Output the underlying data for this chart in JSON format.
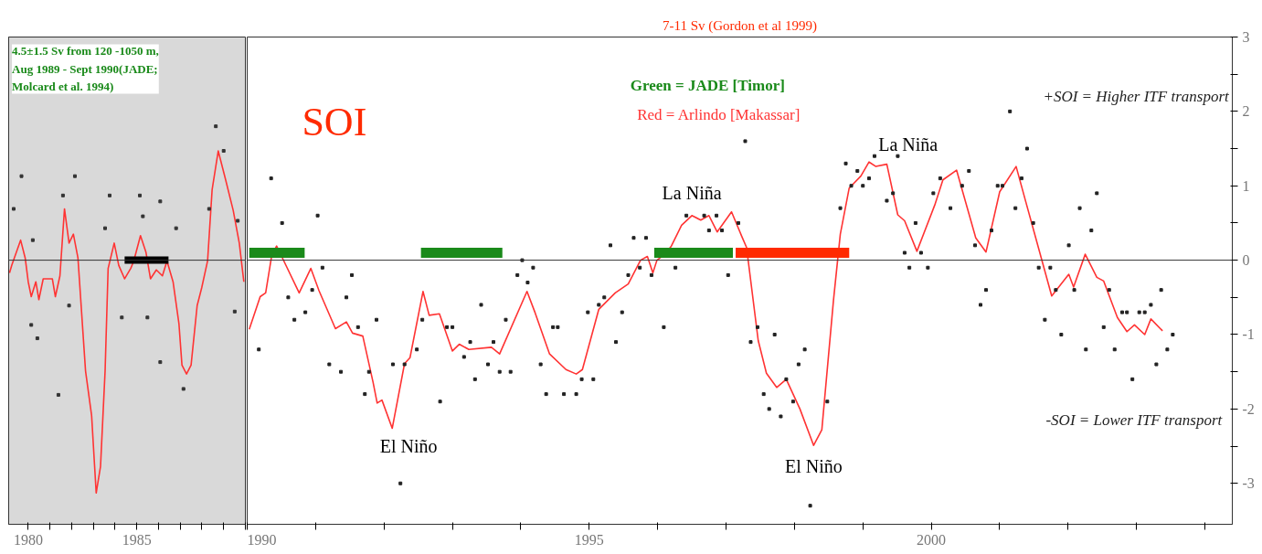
{
  "chart_data": [
    {
      "type": "line",
      "ylim": [
        -3.55,
        3
      ],
      "series": [
        {
          "type": "line",
          "color": "#ff3333",
          "x": [
            1979.14,
            1979.24,
            1979.65,
            1979.86,
            1980.0,
            1980.14,
            1980.35,
            1980.49,
            1980.69,
            1981.11,
            1981.25,
            1981.46,
            1981.67,
            1981.88,
            1982.08,
            1982.29,
            1982.64,
            1982.92,
            1983.13,
            1983.33,
            1983.54,
            1983.68,
            1983.96,
            1984.17,
            1984.44,
            1984.72,
            1984.86,
            1985.17,
            1985.42,
            1985.63,
            1985.9,
            1986.18,
            1986.39,
            1986.67,
            1986.94,
            1987.08,
            1987.29,
            1987.5,
            1987.78,
            1987.99,
            1988.26,
            1988.47,
            1988.75,
            1989.1,
            1989.44,
            1989.72,
            1989.93
          ],
          "values": [
            -0.17,
            -0.07,
            0.27,
            0.03,
            -0.29,
            -0.49,
            -0.29,
            -0.53,
            -0.25,
            -0.25,
            -0.49,
            -0.21,
            0.69,
            0.23,
            0.35,
            0.03,
            -1.49,
            -2.09,
            -3.13,
            -2.77,
            -1.49,
            -0.11,
            0.23,
            -0.07,
            -0.25,
            -0.11,
            -0.01,
            0.33,
            0.11,
            -0.25,
            -0.13,
            -0.21,
            -0.01,
            -0.29,
            -0.85,
            -1.41,
            -1.53,
            -1.41,
            -0.61,
            -0.37,
            -0.01,
            0.95,
            1.47,
            1.07,
            0.67,
            0.23,
            -0.29
          ]
        },
        {
          "type": "scatter",
          "color": "#333333",
          "x": [
            1979.33,
            1979.69,
            1980.14,
            1980.21,
            1980.42,
            1981.39,
            1981.6,
            1981.88,
            1982.15,
            1983.54,
            1983.75,
            1984.31,
            1985.14,
            1985.28,
            1985.49,
            1986.08,
            1986.08,
            1986.81,
            1987.15,
            1988.33,
            1988.64,
            1989.0,
            1989.51,
            1989.65
          ],
          "values": [
            0.69,
            1.13,
            -0.87,
            0.27,
            -1.05,
            -1.81,
            0.87,
            -0.61,
            1.13,
            0.43,
            0.87,
            -0.77,
            0.87,
            0.59,
            -0.77,
            0.79,
            -1.37,
            0.43,
            -1.73,
            0.69,
            1.8,
            1.47,
            -0.69,
            0.53
          ]
        },
        {
          "type": "line",
          "color": "#000000",
          "x": [
            1984.44,
            1986.46
          ],
          "values": [
            0,
            0
          ]
        }
      ],
      "xlim": [
        1979.1,
        1990.0
      ],
      "xticks": [
        1980,
        {
          "value": 1981,
          "label": null
        },
        {
          "value": 1982,
          "label": null
        },
        {
          "value": 1983,
          "label": null
        },
        {
          "value": 1984,
          "label": null
        },
        1985,
        {
          "value": 1986,
          "label": null
        },
        {
          "value": 1987,
          "label": null
        },
        {
          "value": 1988,
          "label": null
        },
        {
          "value": 1989,
          "label": null
        },
        {
          "value": 1990,
          "label": null
        }
      ],
      "tick_labels": "x",
      "ref_lines": [
        {
          "axis": "y",
          "value": 0,
          "color": "#333333"
        }
      ],
      "annotations": [
        "4.5±1.5 Sv from 120 -1050 m, Aug 1989 - Sept 1990(JADE; Molcard et al. 1994)"
      ]
    },
    {
      "type": "line",
      "series": [
        {
          "type": "line",
          "color": "#ff3333",
          "x": [
            1990.03,
            1990.19,
            1990.27,
            1990.36,
            1990.43,
            1990.52,
            1990.76,
            1990.93,
            1991.05,
            1991.29,
            1991.45,
            1991.54,
            1991.69,
            1991.84,
            1991.9,
            1991.97,
            1992.12,
            1992.3,
            1992.38,
            1992.57,
            1992.66,
            1992.81,
            1993.0,
            1993.1,
            1993.24,
            1993.57,
            1993.69,
            1994.09,
            1994.21,
            1994.42,
            1994.66,
            1994.81,
            1994.9,
            1995.14,
            1995.38,
            1995.57,
            1995.75,
            1995.85,
            1995.93,
            1995.99,
            1996.09,
            1996.2,
            1996.35,
            1996.5,
            1996.63,
            1996.75,
            1996.87,
            1997.08,
            1997.23,
            1997.3,
            1997.47,
            1997.59,
            1997.74,
            1997.88,
            1998.08,
            1998.28,
            1998.4,
            1998.57,
            1998.67,
            1998.8,
            1998.97,
            1999.09,
            1999.19,
            1999.35,
            1999.51,
            1999.61,
            1999.79,
            2000.05,
            2000.17,
            2000.37,
            2000.65,
            2000.8,
            2001.0,
            2001.24,
            2001.38,
            2001.76,
            2002.01,
            2002.08,
            2002.25,
            2002.42,
            2002.52,
            2002.72,
            2002.86,
            2002.97,
            2003.12,
            2003.21,
            2003.38
          ],
          "values": [
            -0.93,
            -0.49,
            -0.44,
            0.07,
            0.19,
            0.02,
            -0.44,
            -0.11,
            -0.41,
            -0.92,
            -0.83,
            -0.98,
            -1.02,
            -1.64,
            -1.92,
            -1.88,
            -2.26,
            -1.39,
            -1.31,
            -0.42,
            -0.74,
            -0.72,
            -1.22,
            -1.13,
            -1.2,
            -1.17,
            -1.26,
            -0.42,
            -0.71,
            -1.26,
            -1.47,
            -1.53,
            -1.47,
            -0.66,
            -0.44,
            -0.32,
            0.0,
            0.05,
            -0.17,
            0.0,
            0.07,
            0.19,
            0.47,
            0.6,
            0.54,
            0.6,
            0.38,
            0.65,
            0.32,
            0.17,
            -1.08,
            -1.52,
            -1.71,
            -1.6,
            -2.0,
            -2.49,
            -2.28,
            -0.54,
            0.35,
            0.97,
            1.13,
            1.32,
            1.26,
            1.29,
            0.61,
            0.53,
            0.12,
            0.74,
            1.08,
            1.21,
            0.3,
            0.11,
            0.92,
            1.26,
            0.79,
            -0.48,
            -0.19,
            -0.36,
            0.08,
            -0.23,
            -0.28,
            -0.77,
            -0.96,
            -0.87,
            -1.0,
            -0.79,
            -0.95
          ]
        },
        {
          "type": "scatter",
          "color": "#222222",
          "x": [
            1990.17,
            1990.35,
            1990.51,
            1990.6,
            1990.69,
            1990.85,
            1990.95,
            1991.03,
            1991.1,
            1991.2,
            1991.37,
            1991.45,
            1991.53,
            1991.62,
            1991.72,
            1991.78,
            1991.89,
            1992.13,
            1992.24,
            1992.3,
            1992.48,
            1992.56,
            1992.82,
            1992.92,
            1993.0,
            1993.17,
            1993.26,
            1993.33,
            1993.42,
            1993.52,
            1993.6,
            1993.69,
            1993.78,
            1993.85,
            1993.95,
            1994.02,
            1994.1,
            1994.18,
            1994.29,
            1994.37,
            1994.47,
            1994.54,
            1994.63,
            1994.81,
            1994.89,
            1994.98,
            1995.06,
            1995.14,
            1995.22,
            1995.31,
            1995.39,
            1995.48,
            1995.57,
            1995.65,
            1995.74,
            1995.83,
            1995.91,
            1996.09,
            1996.26,
            1996.42,
            1996.68,
            1996.75,
            1996.86,
            1996.94,
            1997.03,
            1997.18,
            1997.28,
            1997.36,
            1997.46,
            1997.55,
            1997.63,
            1997.71,
            1997.8,
            1997.88,
            1997.98,
            1998.06,
            1998.15,
            1998.23,
            1998.48,
            1998.67,
            1998.75,
            1998.83,
            1998.92,
            1999.0,
            1999.09,
            1999.17,
            1999.35,
            1999.44,
            1999.51,
            1999.61,
            1999.68,
            1999.77,
            1999.85,
            1999.95,
            2000.03,
            2000.13,
            2000.28,
            2000.45,
            2000.55,
            2000.64,
            2000.72,
            2000.8,
            2000.88,
            2000.97,
            2001.04,
            2001.15,
            2001.23,
            2001.32,
            2001.4,
            2001.49,
            2001.57,
            2001.66,
            2001.74,
            2001.82,
            2001.9,
            2002.01,
            2002.09,
            2002.17,
            2002.26,
            2002.34,
            2002.42,
            2002.52,
            2002.6,
            2002.68,
            2002.79,
            2002.86,
            2002.94,
            2003.04,
            2003.12,
            2003.21,
            2003.29,
            2003.36,
            2003.45,
            2003.53
          ],
          "values": [
            -1.2,
            1.1,
            0.5,
            -0.5,
            -0.8,
            -0.7,
            -0.4,
            0.6,
            -0.1,
            -1.4,
            -1.5,
            -0.5,
            -0.2,
            -0.9,
            -1.8,
            -1.5,
            -0.8,
            -1.4,
            -3.0,
            -1.4,
            -1.2,
            -0.8,
            -1.9,
            -0.9,
            -0.9,
            -1.3,
            -1.1,
            -1.6,
            -0.6,
            -1.4,
            -1.1,
            -1.5,
            -0.8,
            -1.5,
            -0.2,
            0.0,
            -0.3,
            -0.1,
            -1.4,
            -1.8,
            -0.9,
            -0.9,
            -1.8,
            -1.8,
            -1.6,
            -0.7,
            -1.6,
            -0.6,
            -0.5,
            0.2,
            -1.1,
            -0.7,
            -0.2,
            0.3,
            -0.1,
            0.3,
            -0.2,
            -0.9,
            -0.1,
            0.6,
            0.6,
            0.4,
            0.6,
            0.4,
            -0.2,
            0.5,
            1.6,
            -1.1,
            -0.9,
            -1.8,
            -2.0,
            -1.0,
            -2.1,
            -1.6,
            -1.9,
            -1.4,
            -1.2,
            -3.3,
            -1.9,
            0.7,
            1.3,
            1.0,
            1.2,
            1.0,
            1.1,
            1.4,
            0.8,
            0.9,
            1.4,
            0.1,
            -0.1,
            0.5,
            0.1,
            -0.1,
            0.9,
            1.1,
            0.7,
            1.0,
            1.2,
            0.2,
            -0.6,
            -0.4,
            0.4,
            1.0,
            1.0,
            2.0,
            0.7,
            1.1,
            1.5,
            0.5,
            -0.1,
            -0.8,
            -0.1,
            -0.4,
            -1.0,
            0.2,
            -0.4,
            0.7,
            -1.2,
            0.4,
            0.9,
            -0.9,
            -0.4,
            -1.2,
            -0.7,
            -0.7,
            -1.6,
            -0.7,
            -0.7,
            -0.6,
            -1.4,
            -0.4,
            -1.2,
            -1.0
          ]
        },
        {
          "type": "line",
          "color": "#1a8a1a",
          "x": [
            1990.03,
            1990.84
          ],
          "values": [
            0.1,
            0.1
          ]
        },
        {
          "type": "line",
          "color": "#1a8a1a",
          "x": [
            1992.54,
            1993.73
          ],
          "values": [
            0.1,
            0.1
          ]
        },
        {
          "type": "line",
          "color": "#1a8a1a",
          "x": [
            1995.95,
            1997.1
          ],
          "values": [
            0.1,
            0.1
          ]
        },
        {
          "type": "line",
          "color": "#ff2a00",
          "x": [
            1997.14,
            1998.8
          ],
          "values": [
            0.1,
            0.1
          ]
        }
      ],
      "xlim": [
        1990.0,
        2004.4
      ],
      "ylim": [
        -3.55,
        3
      ],
      "xticks": [
        1990,
        {
          "value": 1991,
          "label": null
        },
        {
          "value": 1992,
          "label": null
        },
        {
          "value": 1993,
          "label": null
        },
        {
          "value": 1994,
          "label": null
        },
        1995,
        {
          "value": 1996,
          "label": null
        },
        {
          "value": 1997,
          "label": null
        },
        {
          "value": 1998,
          "label": null
        },
        {
          "value": 1999,
          "label": null
        },
        2000,
        {
          "value": 2001,
          "label": null
        },
        {
          "value": 2002,
          "label": null
        },
        {
          "value": 2003,
          "label": null
        },
        {
          "value": 2004,
          "label": null
        }
      ],
      "yticks": [
        -3,
        {
          "value": -2.5,
          "label": null
        },
        -2,
        {
          "value": -1.5,
          "label": null
        },
        -1,
        {
          "value": -0.5,
          "label": null
        },
        0,
        {
          "value": 0.5,
          "label": null
        },
        1,
        {
          "value": 1.5,
          "label": null
        },
        2,
        {
          "value": 2.5,
          "label": null
        },
        3
      ],
      "ref_lines": [
        {
          "axis": "y",
          "value": 0,
          "color": "#333333"
        }
      ],
      "annotations": [
        "7-11 Sv (Gordon et al 1999)",
        "SOI",
        "Green = JADE [Timor]",
        "Red = Arlindo [Makassar]",
        "+SOI = Higher ITF transport",
        "-SOI = Lower ITF transport",
        {
          "text": "El Niño",
          "x": 1992.12,
          "y": -2.26
        },
        {
          "text": "El Niño",
          "x": 1998.28,
          "y": -2.49
        },
        {
          "text": "La Niña",
          "x": 1996.5,
          "y": 0.6
        },
        {
          "text": "La Niña",
          "x": 1999.2,
          "y": 1.32
        }
      ]
    }
  ]
}
